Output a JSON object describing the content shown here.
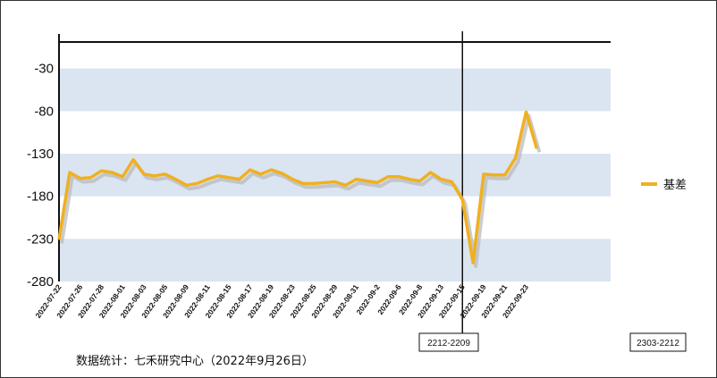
{
  "chart_data": {
    "type": "line",
    "title": "",
    "xlabel": "",
    "ylabel": "",
    "ylim": [
      -280,
      20
    ],
    "yticks": [
      -30,
      -80,
      -130,
      -180,
      -230,
      -280
    ],
    "grid": "alternating horizontal bands",
    "legend_position": "right",
    "x_tick_labels": [
      "2022-07-22",
      "2022-07-26",
      "2022-07-28",
      "2022-08-01",
      "2022-08-03",
      "2022-08-05",
      "2022-08-09",
      "2022-08-11",
      "2022-08-15",
      "2022-08-17",
      "2022-08-19",
      "2022-08-23",
      "2022-08-25",
      "2022-08-29",
      "2022-08-31",
      "2022-09-2",
      "2022-09-6",
      "2022-09-8",
      "2022-09-13",
      "2022-09-15",
      "2022-09-19",
      "2022-09-21",
      "2022-09-23"
    ],
    "x": [
      "2022-07-22",
      "2022-07-25",
      "2022-07-26",
      "2022-07-27",
      "2022-07-28",
      "2022-07-29",
      "2022-08-01",
      "2022-08-02",
      "2022-08-03",
      "2022-08-04",
      "2022-08-05",
      "2022-08-08",
      "2022-08-09",
      "2022-08-10",
      "2022-08-11",
      "2022-08-12",
      "2022-08-15",
      "2022-08-16",
      "2022-08-17",
      "2022-08-18",
      "2022-08-19",
      "2022-08-22",
      "2022-08-23",
      "2022-08-24",
      "2022-08-25",
      "2022-08-26",
      "2022-08-29",
      "2022-08-30",
      "2022-08-31",
      "2022-09-01",
      "2022-09-2",
      "2022-09-05",
      "2022-09-6",
      "2022-09-07",
      "2022-09-8",
      "2022-09-09",
      "2022-09-13",
      "2022-09-14",
      "2022-09-15",
      "2022-09-16",
      "2022-09-19",
      "2022-09-20",
      "2022-09-21",
      "2022-09-22",
      "2022-09-23",
      "2022-09-26"
    ],
    "series": [
      {
        "name": "基差",
        "color": "#f0b020",
        "values": [
          -231,
          -152,
          -159,
          -158,
          -150,
          -152,
          -157,
          -137,
          -154,
          -156,
          -154,
          -160,
          -167,
          -165,
          -160,
          -156,
          -158,
          -160,
          -149,
          -154,
          -149,
          -153,
          -160,
          -165,
          -165,
          -164,
          -163,
          -167,
          -160,
          -162,
          -164,
          -157,
          -157,
          -160,
          -162,
          -152,
          -160,
          -163,
          -184,
          -258,
          -154,
          -155,
          -155,
          -135,
          -81,
          -124
        ]
      }
    ],
    "markers": [
      {
        "label": "2212-2209",
        "at_x": "2022-09-15"
      },
      {
        "label": "2303-2212"
      }
    ]
  },
  "footnote": "数据统计：七禾研究中心（2022年9月26日）"
}
